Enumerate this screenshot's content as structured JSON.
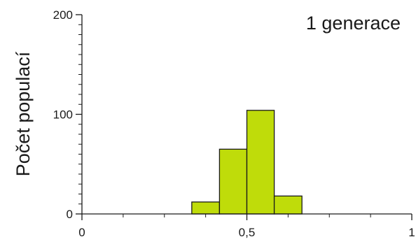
{
  "chart_data": {
    "type": "bar",
    "annotation": "1 generace",
    "ylabel": "Počet populací",
    "xlabel": "",
    "xlim": [
      0,
      1
    ],
    "ylim": [
      0,
      200
    ],
    "x_ticks": [
      {
        "value": 0,
        "label": "0"
      },
      {
        "value": 0.5,
        "label": "0,5"
      },
      {
        "value": 1,
        "label": "1"
      }
    ],
    "y_ticks": [
      {
        "value": 0,
        "label": "0"
      },
      {
        "value": 100,
        "label": "100"
      },
      {
        "value": 200,
        "label": "200"
      }
    ],
    "bins": [
      {
        "x0": 0.333,
        "x1": 0.417,
        "value": 12
      },
      {
        "x0": 0.417,
        "x1": 0.5,
        "value": 65
      },
      {
        "x0": 0.5,
        "x1": 0.583,
        "value": 104
      },
      {
        "x0": 0.583,
        "x1": 0.667,
        "value": 18
      }
    ],
    "bar_color": "#bfdc0a",
    "bar_edge_color": "#1a1a1a",
    "grid": false,
    "legend": "none"
  }
}
